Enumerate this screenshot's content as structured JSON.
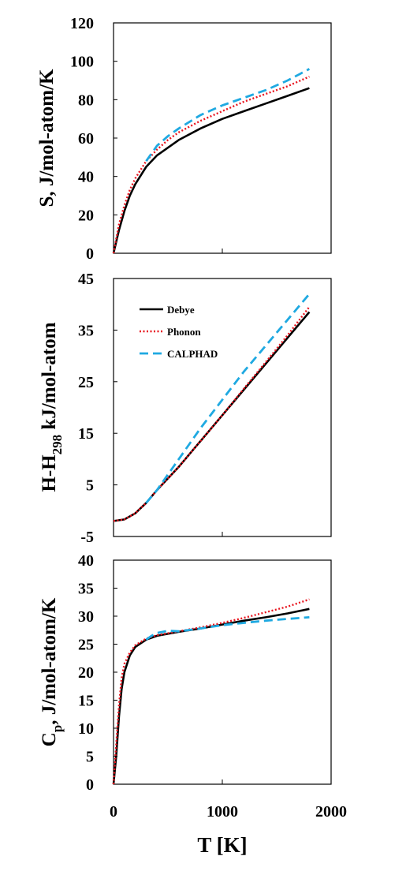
{
  "chart_data": [
    {
      "type": "line",
      "ylabel": "S, J/mol-atom/K",
      "xlim": [
        0,
        2000
      ],
      "ylim": [
        0,
        120
      ],
      "yticks": [
        "0",
        "20",
        "40",
        "60",
        "80",
        "100",
        "120"
      ],
      "grid": false,
      "series": [
        {
          "name": "Debye",
          "color": "#000000",
          "style": "solid",
          "x": [
            0,
            50,
            100,
            150,
            200,
            300,
            400,
            500,
            600,
            800,
            1000,
            1200,
            1400,
            1600,
            1800
          ],
          "y": [
            0,
            12,
            22,
            30,
            36,
            45,
            51,
            55,
            59,
            65,
            70,
            74,
            78,
            82,
            86
          ]
        },
        {
          "name": "Phonon",
          "color": "#e8141e",
          "style": "dotted",
          "x": [
            0,
            50,
            100,
            150,
            200,
            300,
            400,
            500,
            600,
            800,
            1000,
            1200,
            1400,
            1600,
            1800
          ],
          "y": [
            0,
            15,
            25,
            33,
            39,
            48,
            54,
            59,
            63,
            69,
            74,
            79,
            83,
            87,
            92
          ]
        },
        {
          "name": "CALPHAD",
          "color": "#1fa9e1",
          "style": "dashed",
          "x": [
            300,
            400,
            500,
            600,
            800,
            1000,
            1200,
            1400,
            1600,
            1800
          ],
          "y": [
            48,
            56,
            61,
            65,
            72,
            77,
            81,
            85,
            90,
            96
          ]
        }
      ]
    },
    {
      "type": "line",
      "ylabel": "H-H298 kJ/mol-atom",
      "xlim": [
        0,
        2000
      ],
      "ylim": [
        -5,
        45
      ],
      "yticks": [
        "-5",
        "5",
        "15",
        "25",
        "35",
        "45"
      ],
      "grid": false,
      "legend": {
        "position": "top-left",
        "entries": [
          "Debye",
          "Phonon",
          "CALPHAD"
        ]
      },
      "series": [
        {
          "name": "Debye",
          "color": "#000000",
          "style": "solid",
          "x": [
            0,
            100,
            200,
            300,
            400,
            600,
            800,
            1000,
            1200,
            1400,
            1600,
            1800
          ],
          "y": [
            -2,
            -1.7,
            -0.5,
            1.5,
            4,
            8.5,
            13.5,
            18.5,
            23.5,
            28.5,
            33.5,
            38.5
          ]
        },
        {
          "name": "Phonon",
          "color": "#e8141e",
          "style": "dotted",
          "x": [
            0,
            100,
            200,
            300,
            400,
            600,
            800,
            1000,
            1200,
            1400,
            1600,
            1800
          ],
          "y": [
            -2,
            -1.7,
            -0.5,
            1.5,
            4,
            8.5,
            13.5,
            18.5,
            23.7,
            28.8,
            34,
            39.5
          ]
        },
        {
          "name": "CALPHAD",
          "color": "#1fa9e1",
          "style": "dashed",
          "x": [
            300,
            400,
            500,
            600,
            800,
            1000,
            1200,
            1400,
            1600,
            1800
          ],
          "y": [
            1.5,
            4,
            7,
            10,
            16,
            21.5,
            27,
            32,
            37,
            42
          ]
        }
      ]
    },
    {
      "type": "line",
      "ylabel": "Cp, J/mol-atom/K",
      "xlabel": "T [K]",
      "xlim": [
        0,
        2000
      ],
      "ylim": [
        0,
        40
      ],
      "xticks": [
        "0",
        "1000",
        "2000"
      ],
      "yticks": [
        "0",
        "5",
        "10",
        "15",
        "20",
        "25",
        "30",
        "35",
        "40"
      ],
      "grid": false,
      "series": [
        {
          "name": "Debye",
          "color": "#000000",
          "style": "solid",
          "x": [
            0,
            25,
            50,
            75,
            100,
            150,
            200,
            300,
            400,
            600,
            800,
            1000,
            1200,
            1400,
            1600,
            1800
          ],
          "y": [
            0,
            5,
            12,
            17,
            20,
            23,
            24.5,
            25.8,
            26.5,
            27.2,
            27.8,
            28.5,
            29.2,
            29.8,
            30.5,
            31.3
          ]
        },
        {
          "name": "Phonon",
          "color": "#e8141e",
          "style": "dotted",
          "x": [
            0,
            25,
            50,
            75,
            100,
            150,
            200,
            300,
            400,
            600,
            800,
            1000,
            1200,
            1400,
            1600,
            1800
          ],
          "y": [
            0,
            7,
            14,
            19,
            21.5,
            23.5,
            24.8,
            26,
            26.6,
            27.3,
            28,
            28.8,
            29.7,
            30.7,
            31.7,
            33
          ]
        },
        {
          "name": "CALPHAD",
          "color": "#1fa9e1",
          "style": "dashed",
          "x": [
            300,
            350,
            400,
            500,
            600,
            800,
            1000,
            1200,
            1400,
            1600,
            1800
          ],
          "y": [
            25.8,
            26.5,
            27,
            27.4,
            27.3,
            27.8,
            28.4,
            28.8,
            29.2,
            29.5,
            29.8
          ]
        }
      ]
    }
  ],
  "labels": {
    "p1_ylabel": "S, J/mol-atom/K",
    "p2_ylabel_main": "H-H",
    "p2_ylabel_sub": "298",
    "p2_ylabel_rest": " kJ/mol-atom",
    "p3_ylabel_main": "C",
    "p3_ylabel_sub": "p",
    "p3_ylabel_rest": ", J/mol-atom/K",
    "xlabel": "T [K]",
    "legend_debye": "Debye",
    "legend_phonon": "Phonon",
    "legend_calphad": "CALPHAD"
  }
}
